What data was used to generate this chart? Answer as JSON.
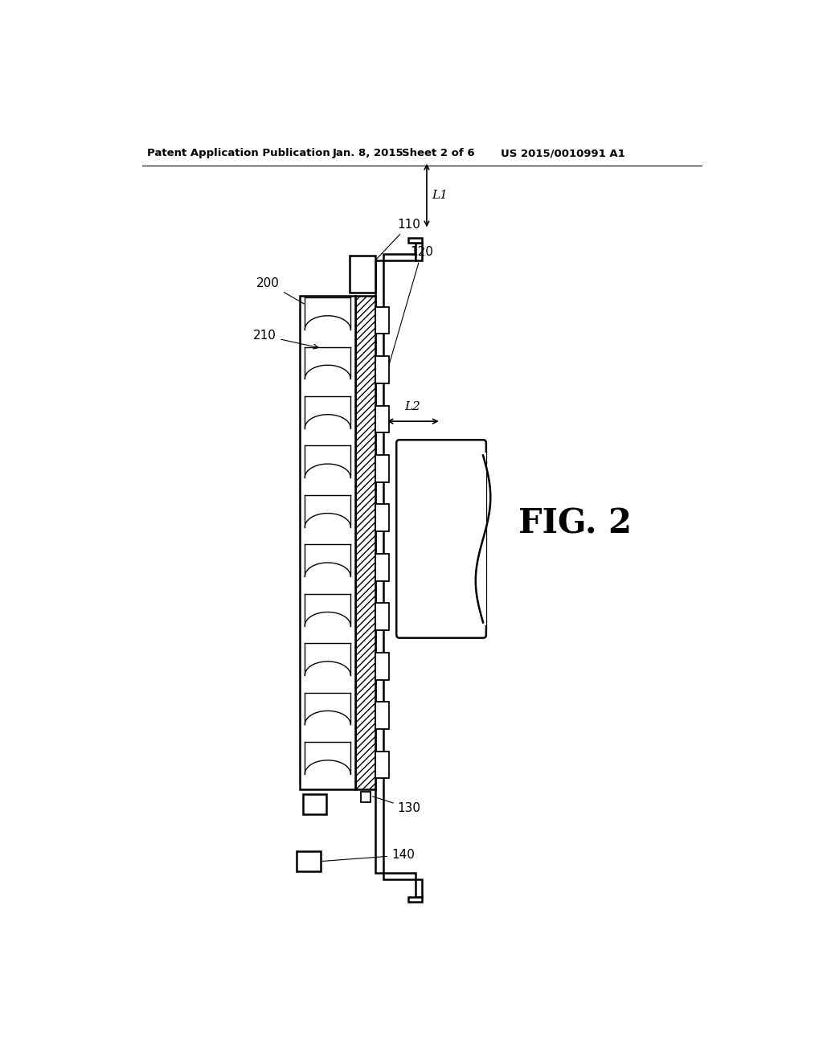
{
  "bg_color": "#ffffff",
  "line_color": "#000000",
  "header_text1": "Patent Application Publication",
  "header_text2": "Jan. 8, 2015",
  "header_text3": "Sheet 2 of 6",
  "header_text4": "US 2015/0010991 A1",
  "fig_label": "FIG. 2",
  "label_110": "110",
  "label_120": "120",
  "label_130": "130",
  "label_140": "140",
  "label_200": "200",
  "label_210": "210",
  "label_L1": "L1",
  "label_L2": "L2",
  "n_coils": 10,
  "n_pads": 10
}
